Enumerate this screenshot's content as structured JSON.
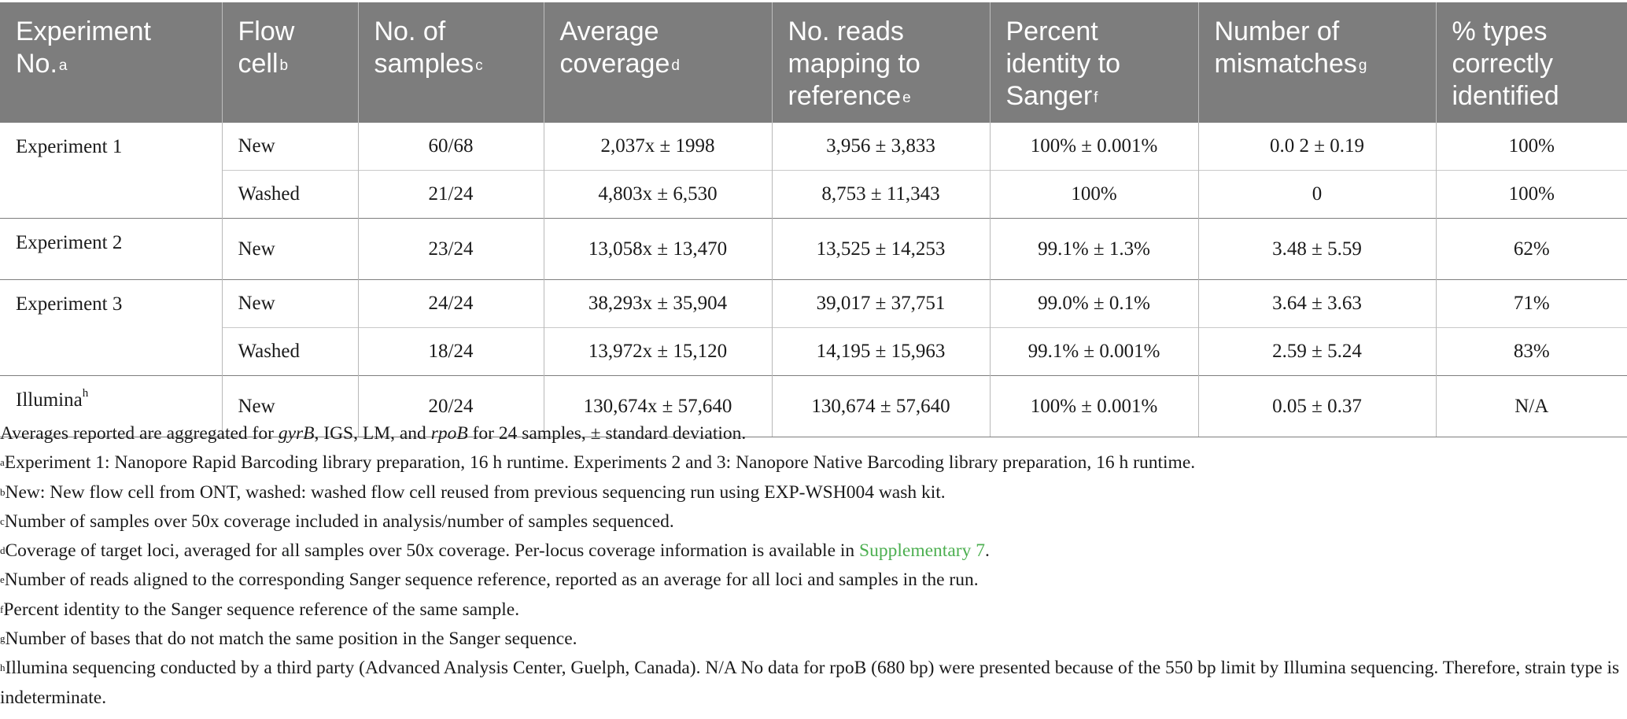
{
  "table": {
    "headers": [
      {
        "text": "Experiment No.",
        "sup": "a"
      },
      {
        "text": "Flow cell",
        "sup": "b"
      },
      {
        "text": "No. of samples",
        "sup": "c"
      },
      {
        "text": "Average coverage",
        "sup": "d"
      },
      {
        "text": "No. reads mapping to reference",
        "sup": "e"
      },
      {
        "text": "Percent identity to Sanger",
        "sup": "f"
      },
      {
        "text": "Number of mismatches",
        "sup": "g"
      },
      {
        "text": "% types correctly identified",
        "sup": ""
      }
    ],
    "rows": [
      {
        "experiment": "Experiment 1",
        "exp_sup": "",
        "flow_cell": "New",
        "samples": "60/68",
        "coverage": "2,037x ± 1998",
        "reads": "3,956 ± 3,833",
        "identity": "100% ± 0.001%",
        "mismatches": "0.0 2 ± 0.19",
        "types": "100%"
      },
      {
        "experiment": "",
        "exp_sup": "",
        "flow_cell": "Washed",
        "samples": "21/24",
        "coverage": "4,803x ± 6,530",
        "reads": "8,753 ± 11,343",
        "identity": "100%",
        "mismatches": "0",
        "types": "100%"
      },
      {
        "experiment": "Experiment 2",
        "exp_sup": "",
        "flow_cell": "New",
        "samples": "23/24",
        "coverage": "13,058x ± 13,470",
        "reads": "13,525 ± 14,253",
        "identity": "99.1% ± 1.3%",
        "mismatches": "3.48 ± 5.59",
        "types": "62%"
      },
      {
        "experiment": "Experiment 3",
        "exp_sup": "",
        "flow_cell": "New",
        "samples": "24/24",
        "coverage": "38,293x ± 35,904",
        "reads": "39,017 ± 37,751",
        "identity": "99.0% ± 0.1%",
        "mismatches": "3.64 ± 3.63",
        "types": "71%"
      },
      {
        "experiment": "",
        "exp_sup": "",
        "flow_cell": "Washed",
        "samples": "18/24",
        "coverage": "13,972x ± 15,120",
        "reads": "14,195 ± 15,963",
        "identity": "99.1% ± 0.001%",
        "mismatches": "2.59 ± 5.24",
        "types": "83%"
      },
      {
        "experiment": "Illumina",
        "exp_sup": "h",
        "flow_cell": "New",
        "samples": "20/24",
        "coverage": "130,674x ± 57,640",
        "reads": "130,674 ± 57,640",
        "identity": "100% ± 0.001%",
        "mismatches": "0.05 ± 0.37",
        "types": "N/A"
      }
    ]
  },
  "notes": {
    "intro": {
      "pre": "Averages reported are aggregated for ",
      "i1": "gyrB",
      "mid": ", IGS, LM, and ",
      "i2": "rpoB",
      "post": " for 24 samples, ± standard deviation."
    },
    "a": {
      "sup": "a",
      "text": "Experiment 1: Nanopore Rapid Barcoding library preparation, 16 h runtime. Experiments 2 and 3: Nanopore Native Barcoding library preparation, 16 h runtime."
    },
    "b": {
      "sup": "b",
      "text": "New: New flow cell from ONT, washed: washed flow cell reused from previous sequencing run using EXP-WSH004 wash kit."
    },
    "c": {
      "sup": "c",
      "text": "Number of samples over 50x coverage included in analysis/number of samples sequenced."
    },
    "d": {
      "sup": "d",
      "text": "Coverage of target loci, averaged for all samples over 50x coverage. Per-locus coverage information is available in ",
      "link": "Supplementary 7",
      "post": "."
    },
    "e": {
      "sup": "e",
      "text": "Number of reads aligned to the corresponding Sanger sequence reference, reported as an average for all loci and samples in the run."
    },
    "f": {
      "sup": "f",
      "text": "Percent identity to the Sanger sequence reference of the same sample."
    },
    "g": {
      "sup": "g",
      "text": "Number of bases that do not match the same position in the Sanger sequence."
    },
    "h": {
      "sup": "h",
      "text": "Illumina sequencing conducted by a third party (Advanced Analysis Center, Guelph, Canada). N/A No data for rpoB (680 bp) were presented because of the 550 bp limit by Illumina sequencing. Therefore, strain type is indeterminate."
    }
  },
  "colors": {
    "header_bg": "#7d7d7d",
    "link": "#4caf50"
  }
}
